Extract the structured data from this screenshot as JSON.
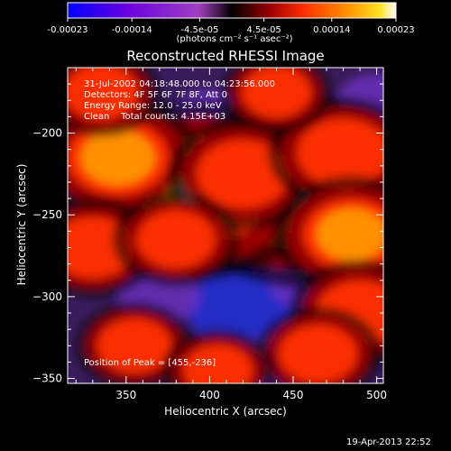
{
  "chart_data": {
    "type": "heatmap",
    "title": "Reconstructed RHESSI Image",
    "xlabel": "Heliocentric X (arcsec)",
    "ylabel": "Heliocentric Y (arcsec)",
    "xlim": [
      315,
      504
    ],
    "ylim": [
      -353,
      -160
    ],
    "x_ticks": [
      350,
      400,
      450,
      500
    ],
    "y_ticks": [
      -200,
      -250,
      -300,
      -350
    ],
    "colorbar": {
      "ticks": [
        "-0.00023",
        "-0.00014",
        "-4.5e-05",
        "4.5e-05",
        "0.00014",
        "0.00023"
      ],
      "tick_values": [
        -0.00023,
        -0.00014,
        -4.5e-05,
        4.5e-05,
        0.00014,
        0.00023
      ],
      "range": [
        -0.00023,
        0.00023
      ],
      "units": "(photons cm⁻² s⁻¹ asec⁻²)",
      "colormap": [
        "#0000ff",
        "#6a00e0",
        "#b040c0",
        "#000000",
        "#a00000",
        "#ff3000",
        "#ff9000",
        "#ffe020",
        "#ffffff"
      ]
    },
    "annotations": [
      "31-Jul-2002 04:18:48.000 to 04:23:56.000",
      "Detectors: 4F 5F 6F 7F 8F, Att 0",
      "Energy Range: 12.0 - 25.0 keV",
      "Clean    Total counts: 4.15E+03"
    ],
    "peak_label": "Position of Peak = [455,-236]",
    "sources": [
      {
        "x": 455,
        "y": -236,
        "value": 0.00023
      },
      {
        "x": 393,
        "y": -235,
        "value": 0.00021
      },
      {
        "x": 345,
        "y": -215,
        "value": 0.00011
      },
      {
        "x": 420,
        "y": -225,
        "value": 9e-05
      },
      {
        "x": 480,
        "y": -212,
        "value": 9e-05
      },
      {
        "x": 330,
        "y": -270,
        "value": 7e-05
      },
      {
        "x": 485,
        "y": -262,
        "value": 0.0001
      },
      {
        "x": 380,
        "y": -265,
        "value": 6e-05
      },
      {
        "x": 490,
        "y": -310,
        "value": 8e-05
      },
      {
        "x": 355,
        "y": -330,
        "value": 5e-05
      },
      {
        "x": 465,
        "y": -335,
        "value": 6e-05
      },
      {
        "x": 405,
        "y": -345,
        "value": 4e-05
      },
      {
        "x": 335,
        "y": -175,
        "value": 5e-05
      },
      {
        "x": 440,
        "y": -175,
        "value": 4e-05
      }
    ],
    "negative_sources": [
      {
        "x": 420,
        "y": -308,
        "value": -0.00014
      },
      {
        "x": 440,
        "y": -342,
        "value": -0.0001
      },
      {
        "x": 400,
        "y": -190,
        "value": -6e-05
      },
      {
        "x": 350,
        "y": -250,
        "value": -6e-05
      },
      {
        "x": 460,
        "y": -290,
        "value": -8e-05
      },
      {
        "x": 370,
        "y": -300,
        "value": -7e-05
      },
      {
        "x": 500,
        "y": -180,
        "value": -6e-05
      }
    ]
  },
  "footer": {
    "date": "19-Apr-2013 22:52"
  }
}
